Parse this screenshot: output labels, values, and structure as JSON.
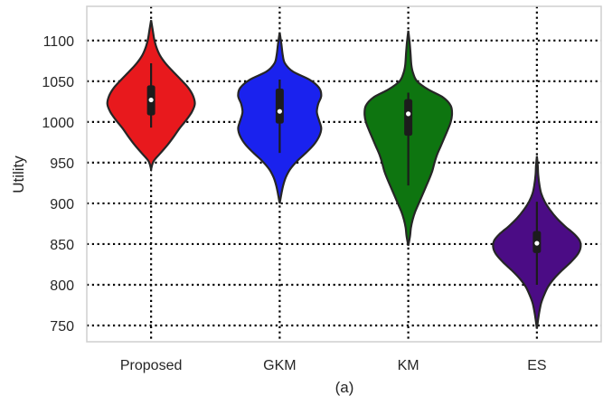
{
  "chart_data": {
    "type": "violin",
    "title": "",
    "xlabel": "(a)",
    "ylabel": "Utility",
    "ylim": [
      730,
      1142
    ],
    "yticks": [
      750,
      800,
      850,
      900,
      950,
      1000,
      1050,
      1100
    ],
    "grid": true,
    "categories": [
      "Proposed",
      "GKM",
      "KM",
      "ES"
    ],
    "colors": [
      "#e8191d",
      "#1a22ee",
      "#0e7510",
      "#4b0c85"
    ],
    "violins": [
      {
        "category": "Proposed",
        "range": [
          942,
          1125
        ],
        "quartiles": [
          1008,
          1027,
          1045
        ],
        "whisker": [
          993,
          1072
        ],
        "profile": [
          [
            942,
            0
          ],
          [
            952,
            0.06
          ],
          [
            962,
            0.22
          ],
          [
            972,
            0.38
          ],
          [
            982,
            0.52
          ],
          [
            992,
            0.65
          ],
          [
            1002,
            0.8
          ],
          [
            1012,
            0.93
          ],
          [
            1022,
            1
          ],
          [
            1032,
            0.96
          ],
          [
            1042,
            0.85
          ],
          [
            1052,
            0.68
          ],
          [
            1062,
            0.5
          ],
          [
            1072,
            0.33
          ],
          [
            1082,
            0.2
          ],
          [
            1092,
            0.12
          ],
          [
            1102,
            0.07
          ],
          [
            1112,
            0.04
          ],
          [
            1125,
            0
          ]
        ]
      },
      {
        "category": "GKM",
        "range": [
          900,
          1110
        ],
        "quartiles": [
          998,
          1013,
          1041
        ],
        "whisker": [
          962,
          1052
        ],
        "profile": [
          [
            900,
            0
          ],
          [
            912,
            0.04
          ],
          [
            922,
            0.08
          ],
          [
            932,
            0.14
          ],
          [
            942,
            0.24
          ],
          [
            952,
            0.4
          ],
          [
            962,
            0.6
          ],
          [
            972,
            0.78
          ],
          [
            982,
            0.9
          ],
          [
            992,
            0.95
          ],
          [
            1002,
            0.9
          ],
          [
            1012,
            0.85
          ],
          [
            1022,
            0.88
          ],
          [
            1032,
            0.95
          ],
          [
            1042,
            0.9
          ],
          [
            1052,
            0.68
          ],
          [
            1062,
            0.3
          ],
          [
            1072,
            0.12
          ],
          [
            1082,
            0.07
          ],
          [
            1095,
            0.04
          ],
          [
            1110,
            0
          ]
        ]
      },
      {
        "category": "KM",
        "range": [
          848,
          1112
        ],
        "quartiles": [
          983,
          1010,
          1028
        ],
        "whisker": [
          922,
          1036
        ],
        "profile": [
          [
            848,
            0
          ],
          [
            860,
            0.04
          ],
          [
            870,
            0.06
          ],
          [
            880,
            0.1
          ],
          [
            890,
            0.16
          ],
          [
            900,
            0.24
          ],
          [
            910,
            0.32
          ],
          [
            920,
            0.4
          ],
          [
            930,
            0.48
          ],
          [
            940,
            0.55
          ],
          [
            950,
            0.6
          ],
          [
            960,
            0.66
          ],
          [
            970,
            0.74
          ],
          [
            980,
            0.82
          ],
          [
            990,
            0.9
          ],
          [
            1000,
            0.97
          ],
          [
            1010,
            1
          ],
          [
            1020,
            0.97
          ],
          [
            1030,
            0.8
          ],
          [
            1040,
            0.45
          ],
          [
            1050,
            0.2
          ],
          [
            1060,
            0.11
          ],
          [
            1070,
            0.07
          ],
          [
            1085,
            0.05
          ],
          [
            1098,
            0.03
          ],
          [
            1112,
            0
          ]
        ]
      },
      {
        "category": "ES",
        "range": [
          746,
          958
        ],
        "quartiles": [
          839,
          851,
          866
        ],
        "whisker": [
          800,
          902
        ],
        "profile": [
          [
            746,
            0
          ],
          [
            758,
            0.03
          ],
          [
            768,
            0.06
          ],
          [
            778,
            0.1
          ],
          [
            788,
            0.17
          ],
          [
            798,
            0.26
          ],
          [
            808,
            0.4
          ],
          [
            818,
            0.58
          ],
          [
            828,
            0.78
          ],
          [
            838,
            0.94
          ],
          [
            846,
            1
          ],
          [
            854,
            0.98
          ],
          [
            862,
            0.86
          ],
          [
            872,
            0.64
          ],
          [
            882,
            0.45
          ],
          [
            892,
            0.3
          ],
          [
            902,
            0.18
          ],
          [
            912,
            0.1
          ],
          [
            922,
            0.06
          ],
          [
            935,
            0.03
          ],
          [
            946,
            0.02
          ],
          [
            958,
            0
          ]
        ]
      }
    ]
  }
}
